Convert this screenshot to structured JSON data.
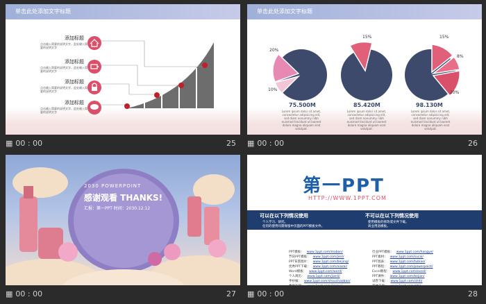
{
  "slides": [
    {
      "number": "25",
      "time": "00 : 00",
      "header": "单击此处添加文字标题",
      "items": [
        {
          "title": "添加标题",
          "text": "点击输入简要的说明文字，此处输入简要的说明文字",
          "icon": "home-icon"
        },
        {
          "title": "添加标题",
          "text": "点击输入简要的说明文字，此处输入简要的说明文字",
          "icon": "battery-icon"
        },
        {
          "title": "添加标题",
          "text": "点击输入简要的说明文字，此处输入简要的说明文字",
          "icon": "lock-icon"
        },
        {
          "title": "添加标题",
          "text": "点击输入简要的说明文字，此处输入简要的说明文字",
          "icon": "chat-icon"
        }
      ]
    },
    {
      "number": "26",
      "time": "00 : 00",
      "header": "单击此处添加文字标题",
      "pies": [
        {
          "value": "75.500M",
          "pct_a": "20%",
          "pct_b": "10%",
          "desc": "Lorem ipsum dolor sit amet, consectetur adipisicing elit, sed diam nonummy nibh euismod tincidunt ut laoreet dolore magna aliquam erat volutpat."
        },
        {
          "value": "85.420M",
          "pct_a": "15%",
          "desc": "Lorem ipsum dolor sit amet, consectetur adipisicing elit, sed diam nonummy nibh euismod tincidunt ut laoreet dolore magna aliquam erat volutpat."
        },
        {
          "value": "98.130M",
          "pct_a": "15%",
          "pct_b": "8%",
          "pct_c": "20%",
          "desc": "Lorem ipsum dolor sit amet, consectetur adipisicing elit, sed diam nonummy nibh euismod tincidunt ut laoreet dolore magna aliquam erat volutpat."
        }
      ]
    },
    {
      "number": "27",
      "time": "00 : 00",
      "subtitle": "2030 POWERPOINT",
      "title": "感谢观看 THANKS!",
      "meta": "汇报：第一PPT   时间：2030.12.12"
    },
    {
      "number": "28",
      "time": "00 : 00",
      "logo_text": "第一PPT",
      "url": "HTTP://WWW.1PPT.COM",
      "can_use_title": "可以在以下列情况使用",
      "can_use_items": [
        "个人学习、研究。",
        "任何的使用均需保留中页面的PPT模板文件。"
      ],
      "cannot_use_title": "不可以在以下列情况使用",
      "cannot_use_items": [
        "使用模板的修改或文件下载。",
        "商业用途模板。"
      ],
      "links_left": [
        {
          "label": "PPT模板：",
          "url": "www.1ppt.com/moban/"
        },
        {
          "label": "节日PPT模板：",
          "url": "www.1ppt.com/jieri/"
        },
        {
          "label": "PPT背景图片：",
          "url": "www.1ppt.com/beijing/"
        },
        {
          "label": "优秀PPT下载：",
          "url": "www.1ppt.com/xiazai/"
        },
        {
          "label": "Word模板：",
          "url": "www.1ppt.com/word/"
        },
        {
          "label": "个人简历：",
          "url": "www.1ppt.com/jianli/"
        },
        {
          "label": "手抄报：",
          "url": "www.1ppt.com/shouchaobao/"
        },
        {
          "label": "教案下载：",
          "url": "www.1ppt.com/jiaoan/"
        }
      ],
      "links_right": [
        {
          "label": "行业PPT模板：",
          "url": "www.1ppt.com/hangye/"
        },
        {
          "label": "PPT素材：",
          "url": "www.1ppt.com/sucai/"
        },
        {
          "label": "PPT图表：",
          "url": "www.1ppt.com/tubiao/"
        },
        {
          "label": "PPT教程：",
          "url": "www.1ppt.com/powerpoint/"
        },
        {
          "label": "Excel教程：",
          "url": "www.1ppt.com/excel/"
        },
        {
          "label": "PPT课件：",
          "url": "www.1ppt.com/kejian/"
        },
        {
          "label": "试卷下载：",
          "url": "www.1ppt.com/shiti/"
        },
        {
          "label": "字体下载：",
          "url": "www.1ppt.com/ziti/"
        }
      ]
    }
  ],
  "colors": {
    "accent": "#d9506a",
    "navy": "#3d4a6b",
    "pink": "#e0607a",
    "banner": "#1f3d6e",
    "blue_logo": "#1d5fa8"
  }
}
